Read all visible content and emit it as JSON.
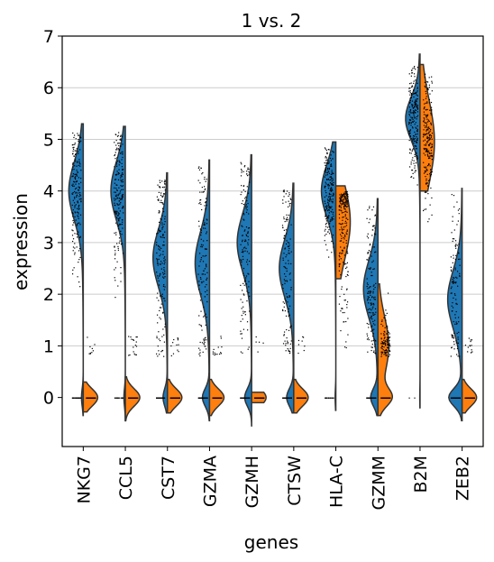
{
  "chart_data": {
    "type": "violin",
    "title": "1 vs. 2",
    "xlabel": "genes",
    "ylabel": "expression",
    "ylim": [
      -0.95,
      7
    ],
    "yticks": [
      0,
      1,
      2,
      3,
      4,
      5,
      6,
      7
    ],
    "grid": "horizontal",
    "split": true,
    "colors": {
      "group1": "#1f77b4",
      "group2": "#ff7f0e",
      "edge": "#333333",
      "points": "#000000",
      "grid": "#cccccc"
    },
    "genes": [
      {
        "name": "NKG7",
        "left": {
          "max": 5.3,
          "min": -0.35,
          "zero": 0.12,
          "expr": [
            4.0,
            0.45,
            0.55
          ]
        },
        "right": {
          "max": 0.3,
          "min": -0.28,
          "zero": 0.95,
          "expr": [
            0.9,
            0.05,
            0.2
          ]
        }
      },
      {
        "name": "CCL5",
        "left": {
          "max": 5.25,
          "min": -0.45,
          "zero": 0.1,
          "expr": [
            4.0,
            0.45,
            0.55
          ]
        },
        "right": {
          "max": 0.4,
          "min": -0.45,
          "zero": 0.95,
          "expr": [
            0.8,
            0.05,
            0.25
          ]
        }
      },
      {
        "name": "CST7",
        "left": {
          "max": 4.35,
          "min": -0.3,
          "zero": 0.25,
          "expr": [
            2.7,
            0.7,
            0.55
          ]
        },
        "right": {
          "max": 0.35,
          "min": -0.3,
          "zero": 0.95,
          "expr": [
            0.8,
            0.05,
            0.2
          ]
        }
      },
      {
        "name": "GZMA",
        "left": {
          "max": 4.6,
          "min": -0.45,
          "zero": 0.35,
          "expr": [
            2.6,
            0.8,
            0.6
          ]
        },
        "right": {
          "max": 0.35,
          "min": -0.35,
          "zero": 0.95,
          "expr": [
            0.8,
            0.05,
            0.2
          ]
        }
      },
      {
        "name": "GZMH",
        "left": {
          "max": 4.7,
          "min": -0.55,
          "zero": 0.35,
          "expr": [
            3.0,
            0.7,
            0.55
          ]
        },
        "right": {
          "max": 0.1,
          "min": -0.1,
          "zero": 0.98,
          "expr": [
            0.6,
            0.02,
            0.08
          ]
        }
      },
      {
        "name": "CTSW",
        "left": {
          "max": 4.15,
          "min": -0.3,
          "zero": 0.35,
          "expr": [
            2.5,
            0.7,
            0.55
          ]
        },
        "right": {
          "max": 0.35,
          "min": -0.3,
          "zero": 0.95,
          "expr": [
            0.8,
            0.05,
            0.2
          ]
        }
      },
      {
        "name": "HLA-C",
        "left": {
          "max": 4.95,
          "min": -0.25,
          "zero": 0.05,
          "expr": [
            4.0,
            0.3,
            0.5
          ]
        },
        "right": {
          "max": 4.1,
          "min": 2.3,
          "zero": 0.0,
          "expr": [
            3.4,
            0.6,
            0.7
          ]
        }
      },
      {
        "name": "GZMM",
        "left": {
          "max": 3.85,
          "min": -0.35,
          "zero": 0.35,
          "expr": [
            2.1,
            0.5,
            0.55
          ]
        },
        "right": {
          "max": 2.2,
          "min": -0.35,
          "zero": 0.55,
          "expr": [
            1.0,
            0.25,
            0.55
          ]
        }
      },
      {
        "name": "B2M",
        "left": {
          "max": 6.65,
          "min": -0.2,
          "zero": 0.02,
          "expr": [
            5.4,
            0.35,
            0.4
          ]
        },
        "right": {
          "max": 6.45,
          "min": 4.0,
          "zero": 0.0,
          "expr": [
            4.95,
            0.35,
            0.8
          ]
        }
      },
      {
        "name": "ZEB2",
        "left": {
          "max": 4.05,
          "min": -0.45,
          "zero": 0.5,
          "expr": [
            1.9,
            0.6,
            0.55
          ]
        },
        "right": {
          "max": 0.35,
          "min": -0.3,
          "zero": 0.95,
          "expr": [
            0.8,
            0.05,
            0.2
          ]
        }
      }
    ]
  }
}
